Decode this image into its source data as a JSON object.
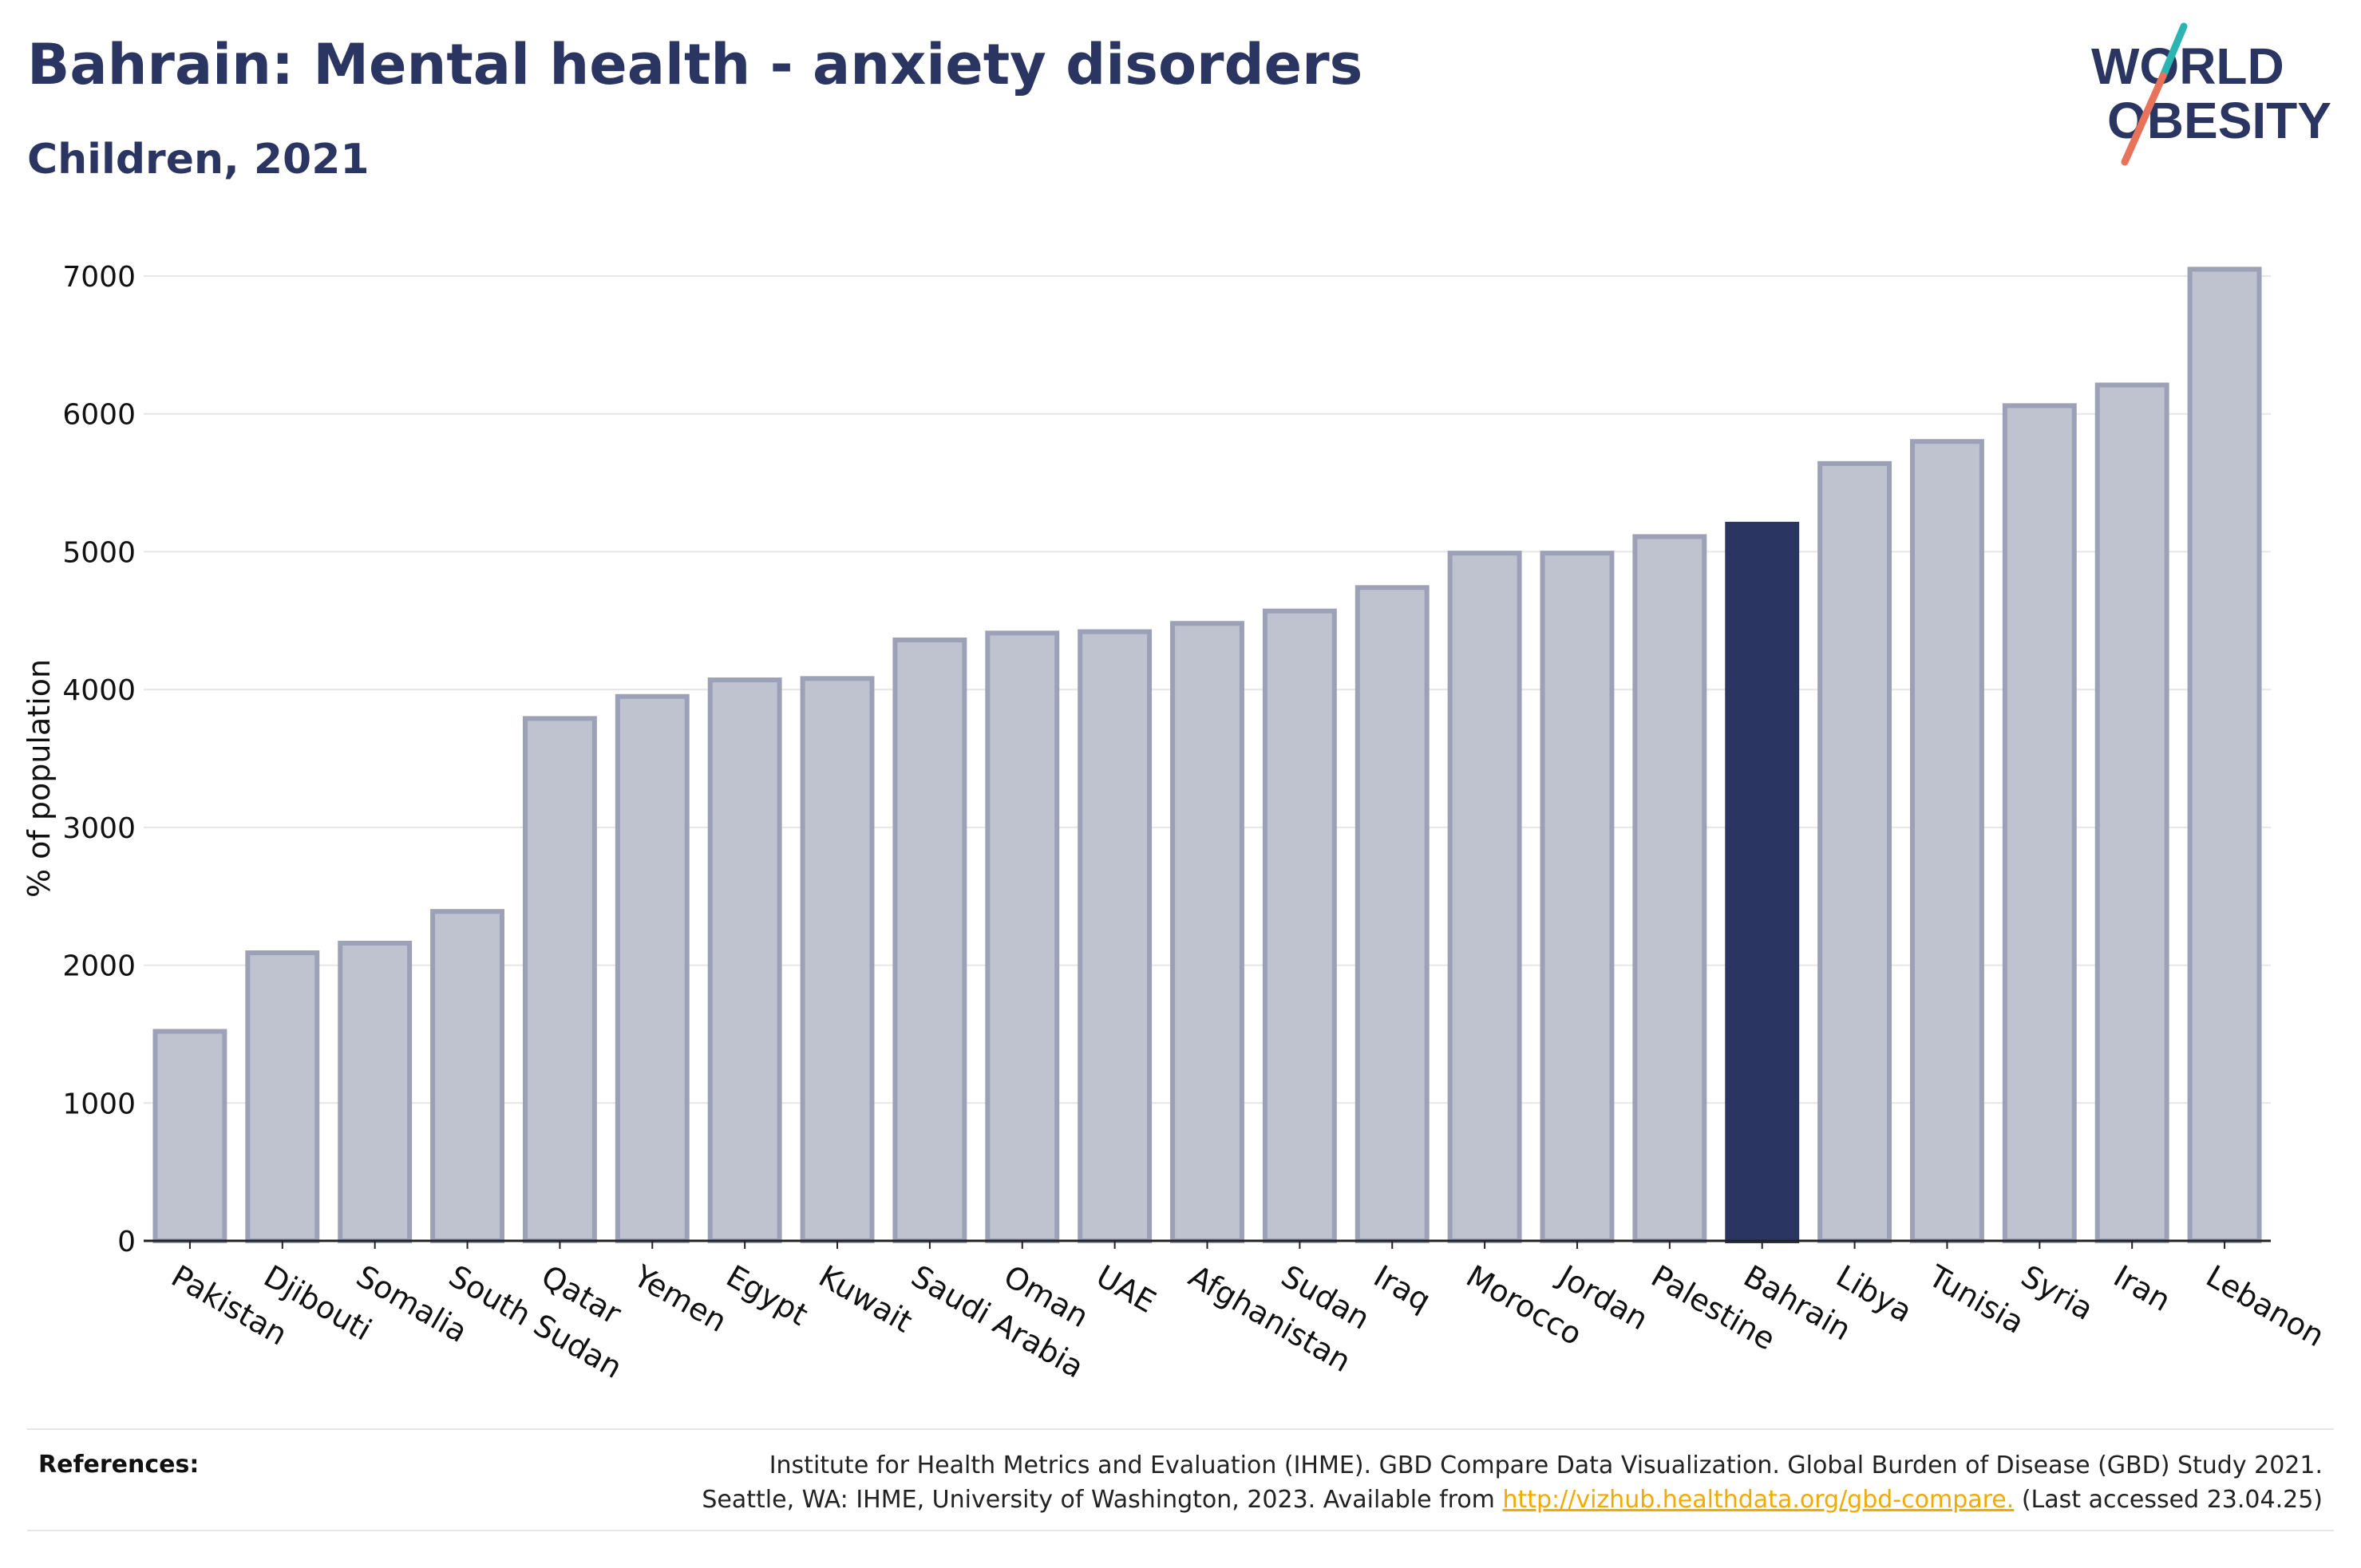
{
  "title": "Bahrain: Mental health - anxiety disorders",
  "subtitle": "Children, 2021",
  "logo": {
    "line1": "WORLD",
    "line2": "OBESITY"
  },
  "colors": {
    "highlight": "#2b3561",
    "bar": "#bfc2cf",
    "bar_border": "#9da1b8",
    "accent_teal": "#2bb5b0",
    "accent_coral": "#e8735a",
    "link": "#f2a900"
  },
  "chart_data": {
    "type": "bar",
    "ylabel": "% of population",
    "ylim": [
      0,
      7000
    ],
    "yticks": [
      0,
      1000,
      2000,
      3000,
      4000,
      5000,
      6000,
      7000
    ],
    "grid": true,
    "highlight": "Bahrain",
    "categories": [
      "Pakistan",
      "Djibouti",
      "Somalia",
      "South Sudan",
      "Qatar",
      "Yemen",
      "Egypt",
      "Kuwait",
      "Saudi Arabia",
      "Oman",
      "UAE",
      "Afghanistan",
      "Sudan",
      "Iraq",
      "Morocco",
      "Jordan",
      "Palestine",
      "Bahrain",
      "Libya",
      "Tunisia",
      "Syria",
      "Iran",
      "Lebanon"
    ],
    "values": [
      1520,
      2090,
      2160,
      2390,
      3790,
      3950,
      4070,
      4080,
      4360,
      4410,
      4420,
      4480,
      4570,
      4740,
      4990,
      4990,
      5110,
      5200,
      5640,
      5800,
      6060,
      6210,
      7050
    ]
  },
  "references": {
    "label": "References:",
    "line1": "Institute for Health Metrics and Evaluation (IHME). GBD Compare Data Visualization. Global Burden of Disease (GBD) Study 2021.",
    "line2_before": "Seattle, WA: IHME, University of Washington, 2023. Available from ",
    "link_text": "http://vizhub.healthdata.org/gbd-compare.",
    "line2_after": " (Last accessed 23.04.25)"
  }
}
